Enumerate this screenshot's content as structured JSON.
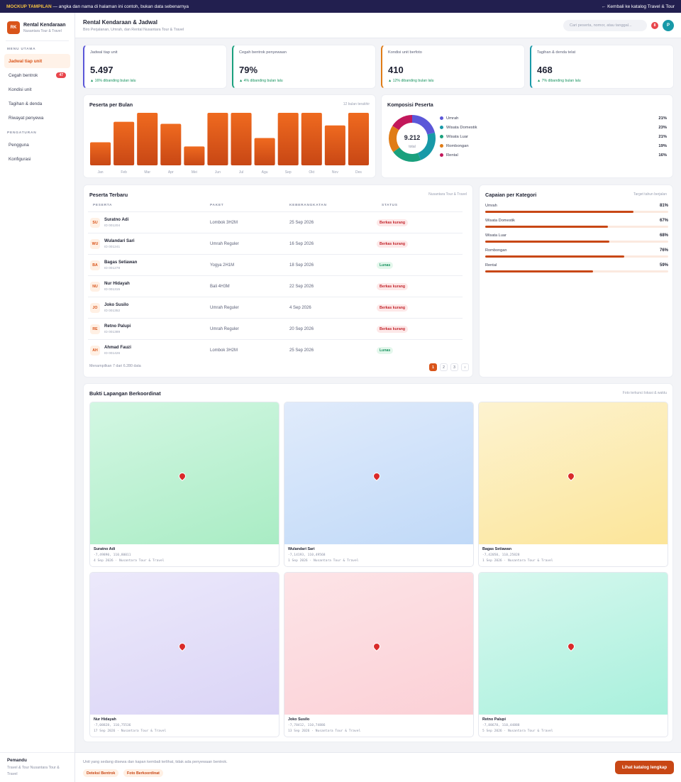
{
  "topbar": {
    "tag": "MOCKUP TAMPILAN",
    "notice": " — angka dan nama di halaman ini contoh, bukan data sebenarnya",
    "back_link": "← Kembali ke katalog Travel & Tour"
  },
  "sidebar": {
    "logo": "RK",
    "title": "Rental Kendaraan",
    "subtitle": "Nusantara Tour & Travel",
    "section_main": "MENU UTAMA",
    "items": [
      {
        "label": "Jadwal tiap unit"
      },
      {
        "label": "Cegah bentrok",
        "badge": "47"
      },
      {
        "label": "Kondisi unit"
      },
      {
        "label": "Tagihan & denda"
      },
      {
        "label": "Riwayat penyewa"
      }
    ],
    "section_settings": "PENGATURAN",
    "settings_items": [
      {
        "label": "Pengguna"
      },
      {
        "label": "Konfigurasi"
      }
    ],
    "footer_title": "Pemandu",
    "footer_sub": "Travel & Tour Nusantara Tour & Travel"
  },
  "header": {
    "title": "Rental Kendaraan & Jadwal",
    "subtitle": "Biro Perjalanan, Umrah, dan Rental Nusantara Tour & Travel",
    "search_placeholder": "Cari peserta, nomor, atau tanggal...",
    "notif_count": "8",
    "avatar": "P"
  },
  "kpis": [
    {
      "label": "Jadwal tiap unit",
      "value": "5.497",
      "delta": "▲ 16% dibanding bulan lalu",
      "color": "#5b57d8"
    },
    {
      "label": "Cegah bentrok penyewaan",
      "value": "79%",
      "delta": "▲ 4% dibanding bulan lalu",
      "color": "#1aa07d"
    },
    {
      "label": "Kondisi unit berfoto",
      "value": "410",
      "delta": "▲ 12% dibanding bulan lalu",
      "color": "#e07c16"
    },
    {
      "label": "Tagihan & denda telat",
      "value": "468",
      "delta": "▲ 7% dibanding bulan lalu",
      "color": "#1899a8"
    }
  ],
  "monthly": {
    "title": "Peserta per Bulan",
    "hint": "12 bulan terakhir"
  },
  "chart_data": [
    {
      "type": "bar",
      "title": "Peserta per Bulan",
      "categories": [
        "Jan",
        "Feb",
        "Mar",
        "Apr",
        "Mei",
        "Jun",
        "Jul",
        "Agu",
        "Sep",
        "Okt",
        "Nov",
        "Des"
      ],
      "values": [
        44,
        83,
        100,
        79,
        36,
        100,
        100,
        52,
        100,
        100,
        76,
        100
      ],
      "ylim": [
        0,
        100
      ],
      "grid": false,
      "color": "#e0570f"
    },
    {
      "type": "pie",
      "title": "Komposisi Peserta",
      "center_value": "9.212",
      "center_label": "total",
      "categories": [
        "Umrah",
        "Wisata Domestik",
        "Wisata Luar",
        "Rombongan",
        "Rental"
      ],
      "values": [
        21,
        23,
        21,
        19,
        16
      ],
      "colors": [
        "#5b57d8",
        "#1899a8",
        "#1aa07d",
        "#e07c16",
        "#c2185b"
      ]
    }
  ],
  "composition": {
    "title": "Komposisi Peserta"
  },
  "recent": {
    "title": "Peserta Terbaru",
    "hint": "Nusantara Tour & Travel",
    "columns": [
      "PESERTA",
      "PAKET",
      "KEBERANGKATAN",
      "STATUS"
    ],
    "rows": [
      {
        "ini": "SU",
        "name": "Suratno Adi",
        "id": "ID 001204",
        "paket": "Lombok 3H2M",
        "date": "25 Sep 2026",
        "status": "Berkas kurang",
        "ok": false
      },
      {
        "ini": "WU",
        "name": "Wulandari Sari",
        "id": "ID 001241",
        "paket": "Umrah Reguler",
        "date": "16 Sep 2026",
        "status": "Berkas kurang",
        "ok": false
      },
      {
        "ini": "BA",
        "name": "Bagas Setiawan",
        "id": "ID 001278",
        "paket": "Yogya 2H1M",
        "date": "18 Sep 2026",
        "status": "Lunas",
        "ok": true
      },
      {
        "ini": "NU",
        "name": "Nur Hidayah",
        "id": "ID 001315",
        "paket": "Bali 4H3M",
        "date": "22 Sep 2026",
        "status": "Berkas kurang",
        "ok": false
      },
      {
        "ini": "JO",
        "name": "Joko Susilo",
        "id": "ID 001352",
        "paket": "Umrah Reguler",
        "date": "4 Sep 2026",
        "status": "Berkas kurang",
        "ok": false
      },
      {
        "ini": "RE",
        "name": "Retno Palupi",
        "id": "ID 001389",
        "paket": "Umrah Reguler",
        "date": "20 Sep 2026",
        "status": "Berkas kurang",
        "ok": false
      },
      {
        "ini": "AH",
        "name": "Ahmad Fauzi",
        "id": "ID 001426",
        "paket": "Lombok 3H2M",
        "date": "25 Sep 2026",
        "status": "Lunas",
        "ok": true
      }
    ],
    "footer": "Menampilkan 7 dari 6.280 data",
    "pages": [
      "1",
      "2",
      "3",
      "›"
    ]
  },
  "achievement": {
    "title": "Capaian per Kategori",
    "hint": "Target tahun berjalan",
    "rows": [
      {
        "name": "Umrah",
        "pct": "81%",
        "value": 0.81
      },
      {
        "name": "Wisata Domestik",
        "pct": "67%",
        "value": 0.67
      },
      {
        "name": "Wisata Luar",
        "pct": "68%",
        "value": 0.68
      },
      {
        "name": "Rombongan",
        "pct": "76%",
        "value": 0.76
      },
      {
        "name": "Rental",
        "pct": "59%",
        "value": 0.59
      }
    ]
  },
  "evidence": {
    "title": "Bukti Lapangan Berkoordinat",
    "hint": "Foto terkunci lokasi & waktu",
    "photos": [
      {
        "name": "Suratno Adi",
        "coord": "-7,49890, 110,80011",
        "meta": "4 Sep 2026 · Nusantara Tour & Travel",
        "c1": "#d3f7e3",
        "c2": "#a9ecc4"
      },
      {
        "name": "Wulandari Sari",
        "coord": "-7,14193, 110,49568",
        "meta": "1 Sep 2026 · Nusantara Tour & Travel",
        "c1": "#e0ebfb",
        "c2": "#c0d9f8"
      },
      {
        "name": "Bagas Setiawan",
        "coord": "-7,42050, 110,25828",
        "meta": "1 Sep 2026 · Nusantara Tour & Travel",
        "c1": "#fdf3d0",
        "c2": "#fce599"
      },
      {
        "name": "Nur Hidayah",
        "coord": "-7,08828, 110,75536",
        "meta": "17 Sep 2026 · Nusantara Tour & Travel",
        "c1": "#ece9fb",
        "c2": "#dad4f6"
      },
      {
        "name": "Joko Susilo",
        "coord": "-7,78412, 110,74886",
        "meta": "13 Sep 2026 · Nusantara Tour & Travel",
        "c1": "#fde4e7",
        "c2": "#fbd0d6"
      },
      {
        "name": "Retno Palupi",
        "coord": "-7,88678, 110,44888",
        "meta": "5 Sep 2026 · Nusantara Tour & Travel",
        "c1": "#d8f8ef",
        "c2": "#a8f0dc"
      }
    ]
  },
  "bottom": {
    "note": "Unit yang sedang disewa dan kapan kembali terlihat, tidak ada penyewaan bentrok.",
    "chips": [
      "Deteksi Bentrok",
      "Foto Berkoordinat"
    ],
    "cta": "Lihat katalog lengkap"
  }
}
